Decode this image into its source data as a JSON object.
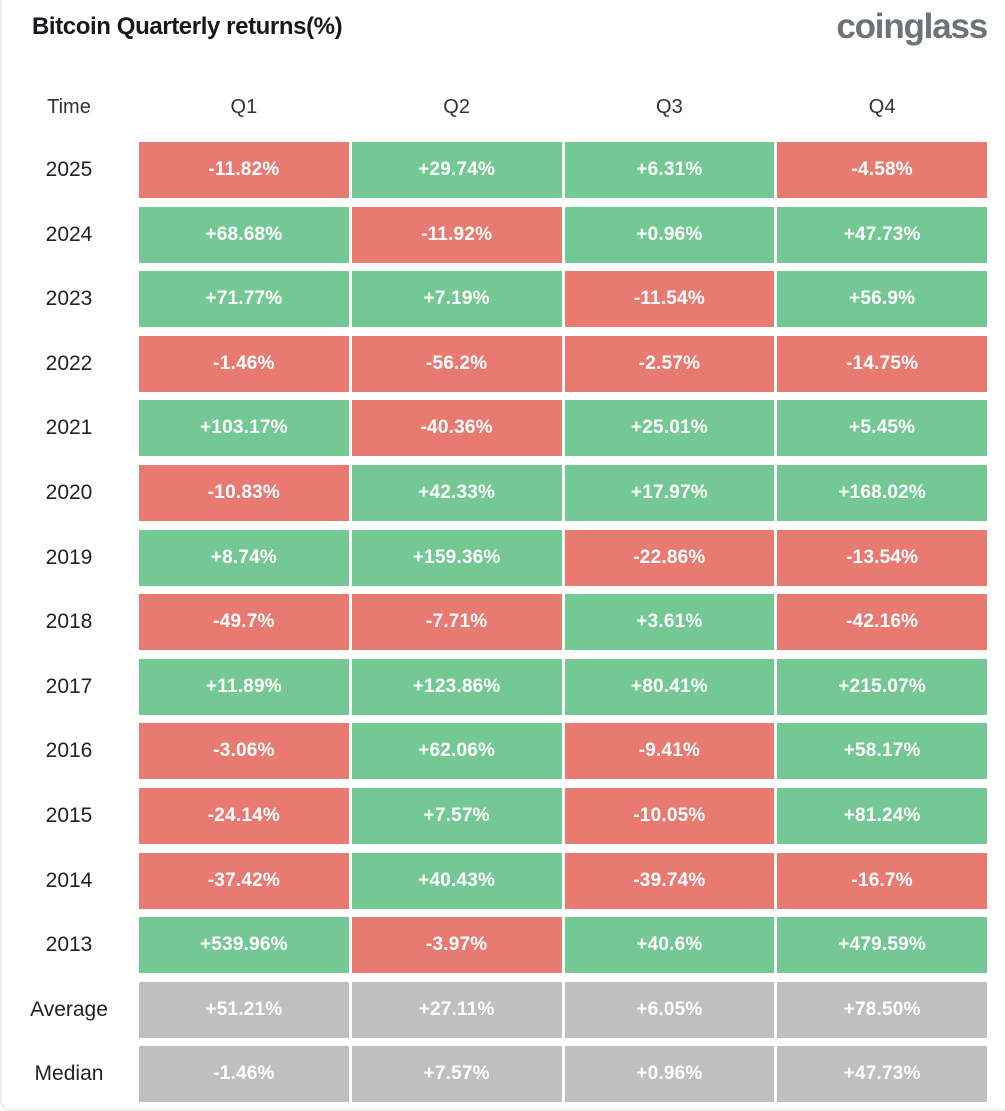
{
  "header": {
    "title": "Bitcoin Quarterly returns(%)",
    "logo": "coinglass"
  },
  "colors": {
    "positive": "#74C893",
    "negative": "#E97A72",
    "neutral": "#BFBFBF",
    "title": "#17181B",
    "logo": "#6E7377"
  },
  "chart_data": {
    "type": "heatmap",
    "title": "Bitcoin Quarterly returns(%)",
    "columns": [
      "Time",
      "Q1",
      "Q2",
      "Q3",
      "Q4"
    ],
    "legend": "green = positive quarterly return, red = negative quarterly return, gray = summary statistic",
    "rows": [
      {
        "label": "2025",
        "kind": "year",
        "values": [
          "-11.82%",
          "+29.74%",
          "+6.31%",
          "-4.58%"
        ]
      },
      {
        "label": "2024",
        "kind": "year",
        "values": [
          "+68.68%",
          "-11.92%",
          "+0.96%",
          "+47.73%"
        ]
      },
      {
        "label": "2023",
        "kind": "year",
        "values": [
          "+71.77%",
          "+7.19%",
          "-11.54%",
          "+56.9%"
        ]
      },
      {
        "label": "2022",
        "kind": "year",
        "values": [
          "-1.46%",
          "-56.2%",
          "-2.57%",
          "-14.75%"
        ]
      },
      {
        "label": "2021",
        "kind": "year",
        "values": [
          "+103.17%",
          "-40.36%",
          "+25.01%",
          "+5.45%"
        ]
      },
      {
        "label": "2020",
        "kind": "year",
        "values": [
          "-10.83%",
          "+42.33%",
          "+17.97%",
          "+168.02%"
        ]
      },
      {
        "label": "2019",
        "kind": "year",
        "values": [
          "+8.74%",
          "+159.36%",
          "-22.86%",
          "-13.54%"
        ]
      },
      {
        "label": "2018",
        "kind": "year",
        "values": [
          "-49.7%",
          "-7.71%",
          "+3.61%",
          "-42.16%"
        ]
      },
      {
        "label": "2017",
        "kind": "year",
        "values": [
          "+11.89%",
          "+123.86%",
          "+80.41%",
          "+215.07%"
        ]
      },
      {
        "label": "2016",
        "kind": "year",
        "values": [
          "-3.06%",
          "+62.06%",
          "-9.41%",
          "+58.17%"
        ]
      },
      {
        "label": "2015",
        "kind": "year",
        "values": [
          "-24.14%",
          "+7.57%",
          "-10.05%",
          "+81.24%"
        ]
      },
      {
        "label": "2014",
        "kind": "year",
        "values": [
          "-37.42%",
          "+40.43%",
          "-39.74%",
          "-16.7%"
        ]
      },
      {
        "label": "2013",
        "kind": "year",
        "values": [
          "+539.96%",
          "-3.97%",
          "+40.6%",
          "+479.59%"
        ]
      },
      {
        "label": "Average",
        "kind": "summary",
        "values": [
          "+51.21%",
          "+27.11%",
          "+6.05%",
          "+78.50%"
        ]
      },
      {
        "label": "Median",
        "kind": "summary",
        "values": [
          "-1.46%",
          "+7.57%",
          "+0.96%",
          "+47.73%"
        ]
      }
    ]
  }
}
